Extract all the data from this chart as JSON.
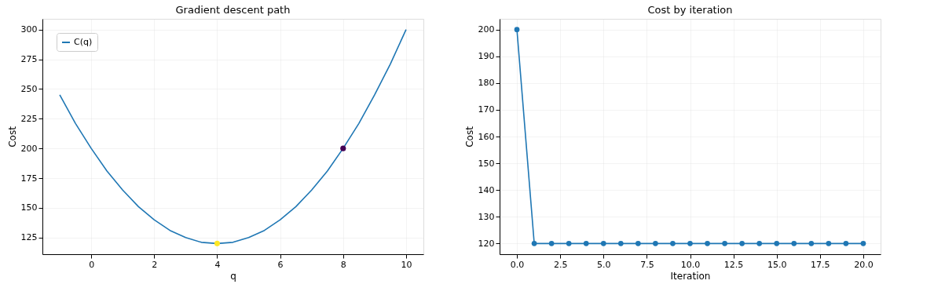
{
  "chart_data": [
    {
      "type": "line",
      "title": "Gradient descent path",
      "xlabel": "q",
      "ylabel": "Cost",
      "xlim": [
        -1.55,
        10.55
      ],
      "xticks": [
        0,
        2,
        4,
        6,
        8,
        10
      ],
      "ylim": [
        111,
        309
      ],
      "yticks": [
        125,
        150,
        175,
        200,
        225,
        250,
        275,
        300
      ],
      "grid": true,
      "legend": "top left",
      "series": [
        {
          "name": "C(q)",
          "type": "line",
          "color": "#1f77b4",
          "x": [
            -1,
            -0.5,
            0,
            0.5,
            1,
            1.5,
            2,
            2.5,
            3,
            3.5,
            4,
            4.5,
            5,
            5.5,
            6,
            6.5,
            7,
            7.5,
            8,
            8.5,
            9,
            9.5,
            10
          ],
          "values": [
            245,
            221,
            200,
            181,
            165,
            151,
            140,
            131,
            125,
            121,
            120,
            121,
            125,
            131,
            140,
            151,
            165,
            181,
            200,
            221,
            245,
            271,
            300
          ]
        },
        {
          "type": "scatter",
          "marker": "circle",
          "x": [
            8,
            4
          ],
          "values": [
            200,
            120
          ],
          "colors": [
            "#440154",
            "#fde725"
          ]
        }
      ]
    },
    {
      "type": "line",
      "title": "Cost by iteration",
      "xlabel": "Iteration",
      "ylabel": "Cost",
      "xlim": [
        -1,
        21
      ],
      "xticks": [
        {
          "value": 0,
          "label": "0.0"
        },
        {
          "value": 2.5,
          "label": "2.5"
        },
        {
          "value": 5,
          "label": "5.0"
        },
        {
          "value": 7.5,
          "label": "7.5"
        },
        {
          "value": 10,
          "label": "10.0"
        },
        {
          "value": 12.5,
          "label": "12.5"
        },
        {
          "value": 15,
          "label": "15.0"
        },
        {
          "value": 17.5,
          "label": "17.5"
        },
        {
          "value": 20,
          "label": "20.0"
        }
      ],
      "ylim": [
        116,
        204
      ],
      "yticks": [
        120,
        130,
        140,
        150,
        160,
        170,
        180,
        190,
        200
      ],
      "grid": true,
      "marker": "circle",
      "series": [
        {
          "color": "#1f77b4",
          "x": [
            0,
            1,
            2,
            3,
            4,
            5,
            6,
            7,
            8,
            9,
            10,
            11,
            12,
            13,
            14,
            15,
            16,
            17,
            18,
            19,
            20
          ],
          "values": [
            200,
            120,
            120,
            120,
            120,
            120,
            120,
            120,
            120,
            120,
            120,
            120,
            120,
            120,
            120,
            120,
            120,
            120,
            120,
            120,
            120
          ]
        }
      ]
    }
  ]
}
